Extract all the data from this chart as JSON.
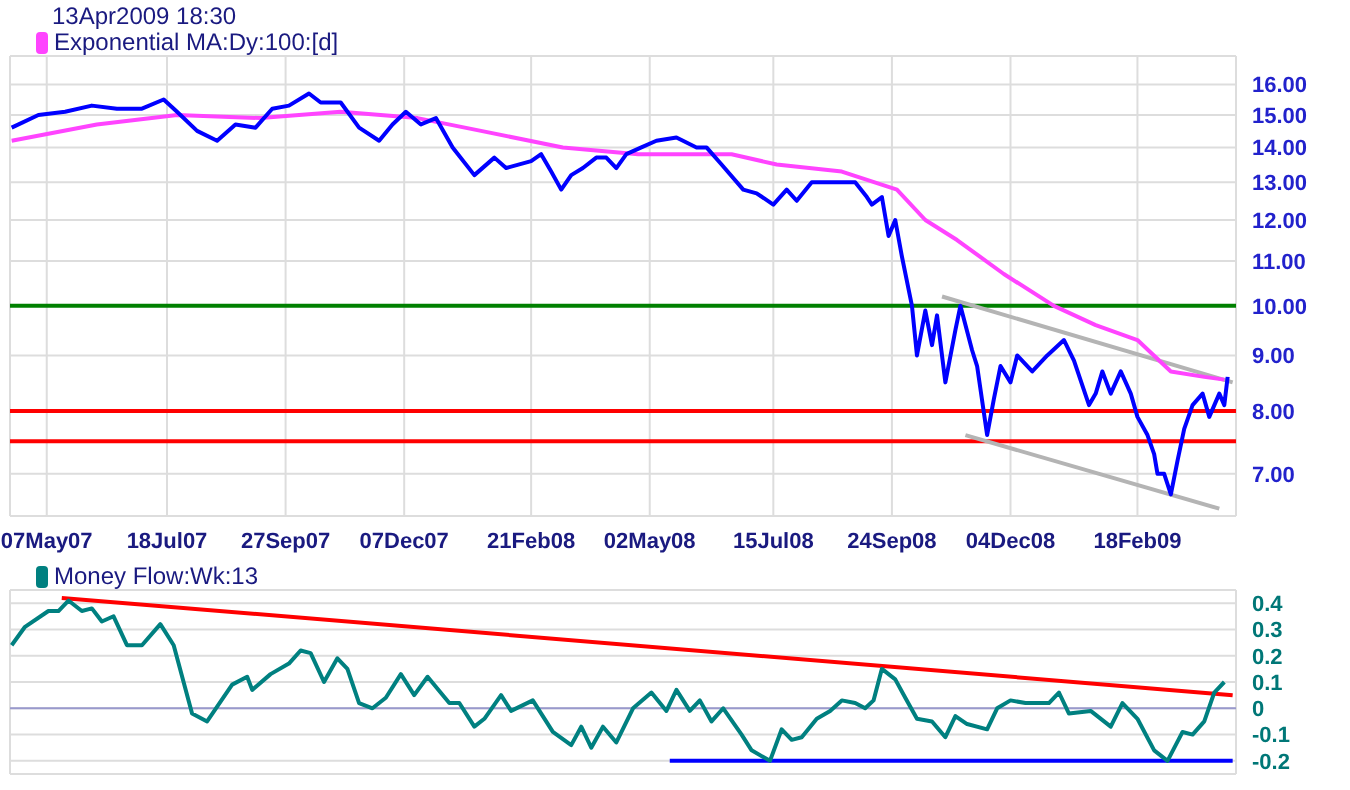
{
  "chart_data": [
    {
      "type": "line",
      "log": "y",
      "grid": true,
      "legend": "top left",
      "annotations": [
        "13Apr2009 18:30"
      ],
      "xlim": [
        "2007-04-15",
        "2009-04-18"
      ],
      "xticks": [
        {
          "value": "2007-05-07",
          "label": "07May07"
        },
        {
          "value": "2007-07-18",
          "label": "18Jul07"
        },
        {
          "value": "2007-09-27",
          "label": "27Sep07"
        },
        {
          "value": "2007-12-07",
          "label": "07Dec07"
        },
        {
          "value": "2008-02-21",
          "label": "21Feb08"
        },
        {
          "value": "2008-05-02",
          "label": "02May08"
        },
        {
          "value": "2008-07-15",
          "label": "15Jul08"
        },
        {
          "value": "2008-09-24",
          "label": "24Sep08"
        },
        {
          "value": "2008-12-04",
          "label": "04Dec08"
        },
        {
          "value": "2009-02-18",
          "label": "18Feb09"
        }
      ],
      "ylim": [
        6.4,
        17
      ],
      "yticks": [
        {
          "value": 7,
          "label": "7.00"
        },
        {
          "value": 8,
          "label": "8.00"
        },
        {
          "value": 9,
          "label": "9.00"
        },
        {
          "value": 10,
          "label": "10.00"
        },
        {
          "value": 11,
          "label": "11.00"
        },
        {
          "value": 12,
          "label": "12.00"
        },
        {
          "value": 13,
          "label": "13.00"
        },
        {
          "value": 14,
          "label": "14.00"
        },
        {
          "value": 15,
          "label": "15.00"
        },
        {
          "value": 16,
          "label": "16.00"
        }
      ],
      "ref_lines": [
        {
          "axis": "y",
          "value": 10,
          "color": "#008000"
        },
        {
          "axis": "y",
          "value": 8,
          "color": "#ff0000"
        },
        {
          "axis": "y",
          "value": 7.5,
          "color": "#ff0000"
        }
      ],
      "series": [
        {
          "color": "#b4b4b4",
          "x": [
            "2008-10-24",
            "2009-04-16"
          ],
          "values": [
            10.2,
            8.5
          ]
        },
        {
          "color": "#b4b4b4",
          "x": [
            "2008-11-07",
            "2009-04-08"
          ],
          "values": [
            7.6,
            6.5
          ]
        },
        {
          "name": "Exponential MA:Dy:100:[d]",
          "color": "#ff44ff",
          "x": [
            "2007-04-16",
            "2007-06-06",
            "2007-07-24",
            "2007-09-12",
            "2007-10-30",
            "2007-12-15",
            "2008-01-22",
            "2008-03-11",
            "2008-04-25",
            "2008-05-06",
            "2008-06-20",
            "2008-07-17",
            "2008-08-25",
            "2008-09-27",
            "2008-10-14",
            "2008-11-02",
            "2008-11-30",
            "2008-12-30",
            "2009-01-24",
            "2009-02-18",
            "2009-03-10",
            "2009-03-30",
            "2009-04-11"
          ],
          "values": [
            14.2,
            14.7,
            15.0,
            14.9,
            15.1,
            14.9,
            14.5,
            14.0,
            13.8,
            13.8,
            13.8,
            13.5,
            13.3,
            12.8,
            12.0,
            11.5,
            10.7,
            10.0,
            9.6,
            9.3,
            8.7,
            8.6,
            8.55
          ]
        },
        {
          "color": "#0000ff",
          "x": [
            "2007-04-16",
            "2007-05-02",
            "2007-05-18",
            "2007-06-03",
            "2007-06-18",
            "2007-07-03",
            "2007-07-16",
            "2007-07-24",
            "2007-08-05",
            "2007-08-17",
            "2007-08-28",
            "2007-09-09",
            "2007-09-19",
            "2007-09-29",
            "2007-10-11",
            "2007-10-18",
            "2007-10-30",
            "2007-11-10",
            "2007-11-22",
            "2007-11-30",
            "2007-12-08",
            "2007-12-17",
            "2007-12-26",
            "2008-01-05",
            "2008-01-18",
            "2008-01-30",
            "2008-02-06",
            "2008-02-21",
            "2008-02-27",
            "2008-03-04",
            "2008-03-10",
            "2008-03-16",
            "2008-03-23",
            "2008-03-31",
            "2008-04-06",
            "2008-04-12",
            "2008-04-18",
            "2008-04-27",
            "2008-05-06",
            "2008-05-18",
            "2008-05-30",
            "2008-06-05",
            "2008-06-14",
            "2008-06-27",
            "2008-07-05",
            "2008-07-15",
            "2008-07-23",
            "2008-07-29",
            "2008-08-07",
            "2008-08-21",
            "2008-09-02",
            "2008-09-09",
            "2008-09-12",
            "2008-09-18",
            "2008-09-22",
            "2008-09-26",
            "2008-09-30",
            "2008-10-06",
            "2008-10-09",
            "2008-10-14",
            "2008-10-18",
            "2008-10-21",
            "2008-10-26",
            "2008-11-01",
            "2008-11-04",
            "2008-11-11",
            "2008-11-14",
            "2008-11-20",
            "2008-11-24",
            "2008-11-28",
            "2008-12-04",
            "2008-12-08",
            "2008-12-17",
            "2008-12-26",
            "2009-01-05",
            "2009-01-11",
            "2009-01-20",
            "2009-01-24",
            "2009-01-28",
            "2009-02-02",
            "2009-02-08",
            "2009-02-14",
            "2009-02-18",
            "2009-02-24",
            "2009-02-28",
            "2009-03-02",
            "2009-03-06",
            "2009-03-10",
            "2009-03-14",
            "2009-03-18",
            "2009-03-23",
            "2009-03-29",
            "2009-04-02",
            "2009-04-08",
            "2009-04-11",
            "2009-04-13"
          ],
          "values": [
            14.6,
            15.0,
            15.1,
            15.3,
            15.2,
            15.2,
            15.5,
            15.1,
            14.5,
            14.2,
            14.7,
            14.6,
            15.2,
            15.3,
            15.7,
            15.4,
            15.4,
            14.6,
            14.2,
            14.7,
            15.1,
            14.7,
            14.9,
            14.0,
            13.2,
            13.7,
            13.4,
            13.6,
            13.8,
            13.3,
            12.8,
            13.2,
            13.4,
            13.7,
            13.7,
            13.4,
            13.8,
            14.0,
            14.2,
            14.3,
            14.0,
            14.0,
            13.5,
            12.8,
            12.7,
            12.4,
            12.8,
            12.5,
            13.0,
            13.0,
            13.0,
            12.6,
            12.4,
            12.6,
            11.6,
            12.0,
            11.1,
            10.0,
            9.0,
            9.9,
            9.2,
            9.8,
            8.5,
            9.5,
            10.0,
            9.1,
            8.8,
            7.6,
            8.2,
            8.8,
            8.5,
            9.0,
            8.7,
            9.0,
            9.3,
            8.9,
            8.1,
            8.3,
            8.7,
            8.3,
            8.7,
            8.3,
            7.9,
            7.6,
            7.3,
            7.0,
            7.0,
            6.7,
            7.2,
            7.7,
            8.1,
            8.3,
            7.9,
            8.3,
            8.1,
            8.6
          ]
        }
      ]
    },
    {
      "type": "line",
      "grid": true,
      "legend": "top left",
      "tick_labels": "y",
      "xlim": [
        "2007-04-15",
        "2009-04-18"
      ],
      "xticks": [
        {
          "value": "2007-05-07",
          "label": null
        },
        {
          "value": "2007-07-18",
          "label": null
        },
        {
          "value": "2007-09-27",
          "label": null
        },
        {
          "value": "2007-12-07",
          "label": null
        },
        {
          "value": "2008-02-21",
          "label": null
        },
        {
          "value": "2008-05-02",
          "label": null
        },
        {
          "value": "2008-07-15",
          "label": null
        },
        {
          "value": "2008-09-24",
          "label": null
        },
        {
          "value": "2008-12-04",
          "label": null
        },
        {
          "value": "2009-02-18",
          "label": null
        }
      ],
      "ylim": [
        -0.25,
        0.45
      ],
      "yticks": [
        -0.2,
        -0.1,
        0,
        0.1,
        0.2,
        0.3,
        0.4
      ],
      "ref_lines": [
        {
          "axis": "y",
          "value": 0,
          "color": "#9999cc"
        }
      ],
      "series": [
        {
          "color": "#ff0000",
          "x": [
            "2007-05-16",
            "2009-04-16"
          ],
          "values": [
            0.42,
            0.05
          ]
        },
        {
          "color": "#0000ff",
          "x": [
            "2008-05-14",
            "2009-04-16"
          ],
          "values": [
            -0.2,
            -0.2
          ]
        },
        {
          "name": "Money Flow:Wk:13",
          "color": "#008080",
          "x": [
            "2007-04-16",
            "2007-04-24",
            "2007-05-08",
            "2007-05-14",
            "2007-05-20",
            "2007-05-28",
            "2007-06-03",
            "2007-06-09",
            "2007-06-16",
            "2007-06-24",
            "2007-07-03",
            "2007-07-14",
            "2007-07-22",
            "2007-08-02",
            "2007-08-11",
            "2007-08-26",
            "2007-09-04",
            "2007-09-07",
            "2007-09-18",
            "2007-09-29",
            "2007-10-06",
            "2007-10-12",
            "2007-10-20",
            "2007-10-28",
            "2007-11-03",
            "2007-11-10",
            "2007-11-18",
            "2007-11-26",
            "2007-12-05",
            "2007-12-13",
            "2007-12-21",
            "2008-01-03",
            "2008-01-09",
            "2008-01-18",
            "2008-01-24",
            "2008-02-03",
            "2008-02-09",
            "2008-02-22",
            "2008-03-05",
            "2008-03-16",
            "2008-03-22",
            "2008-03-28",
            "2008-04-04",
            "2008-04-12",
            "2008-04-22",
            "2008-05-03",
            "2008-05-12",
            "2008-05-18",
            "2008-05-26",
            "2008-06-01",
            "2008-06-08",
            "2008-06-15",
            "2008-06-26",
            "2008-07-02",
            "2008-07-13",
            "2008-07-20",
            "2008-07-26",
            "2008-08-01",
            "2008-08-10",
            "2008-08-18",
            "2008-08-25",
            "2008-09-02",
            "2008-09-08",
            "2008-09-13",
            "2008-09-18",
            "2008-09-26",
            "2008-10-02",
            "2008-10-09",
            "2008-10-18",
            "2008-10-26",
            "2008-11-01",
            "2008-11-08",
            "2008-11-20",
            "2008-11-26",
            "2008-12-04",
            "2008-12-13",
            "2008-12-27",
            "2009-01-02",
            "2009-01-08",
            "2009-01-21",
            "2009-02-02",
            "2009-02-09",
            "2009-02-18",
            "2009-02-28",
            "2009-03-08",
            "2009-03-17",
            "2009-03-23",
            "2009-03-30",
            "2009-04-05",
            "2009-04-11"
          ],
          "values": [
            0.24,
            0.31,
            0.37,
            0.37,
            0.41,
            0.37,
            0.38,
            0.33,
            0.35,
            0.24,
            0.24,
            0.32,
            0.24,
            -0.02,
            -0.05,
            0.09,
            0.12,
            0.07,
            0.13,
            0.17,
            0.22,
            0.21,
            0.1,
            0.19,
            0.15,
            0.02,
            0.0,
            0.04,
            0.13,
            0.05,
            0.12,
            0.02,
            0.02,
            -0.07,
            -0.04,
            0.05,
            -0.01,
            0.03,
            -0.09,
            -0.14,
            -0.07,
            -0.15,
            -0.07,
            -0.13,
            0.0,
            0.06,
            -0.01,
            0.07,
            -0.01,
            0.03,
            -0.05,
            0.0,
            -0.1,
            -0.16,
            -0.2,
            -0.08,
            -0.12,
            -0.11,
            -0.04,
            -0.01,
            0.03,
            0.02,
            0.0,
            0.03,
            0.15,
            0.11,
            0.04,
            -0.04,
            -0.05,
            -0.11,
            -0.03,
            -0.06,
            -0.08,
            0.0,
            0.03,
            0.02,
            0.02,
            0.06,
            -0.02,
            -0.01,
            -0.07,
            0.02,
            -0.04,
            -0.16,
            -0.2,
            -0.09,
            -0.1,
            -0.05,
            0.06,
            0.1
          ]
        }
      ]
    }
  ]
}
